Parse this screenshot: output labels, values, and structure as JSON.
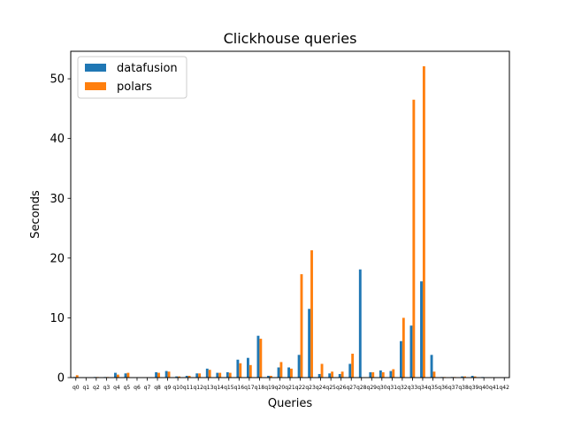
{
  "chart_data": {
    "type": "bar",
    "title": "Clickhouse queries",
    "xlabel": "Queries",
    "ylabel": "Seconds",
    "ylim": [
      0,
      54.6
    ],
    "yticks": [
      0,
      10,
      20,
      30,
      40,
      50
    ],
    "grid": false,
    "legend_position": "top-left",
    "categories": [
      "q0",
      "q1",
      "q2",
      "q3",
      "q4",
      "q5",
      "q6",
      "q7",
      "q8",
      "q9",
      "q10",
      "q11",
      "q12",
      "q13",
      "q14",
      "q15",
      "q16",
      "q17",
      "q18",
      "q19",
      "q20",
      "q21",
      "q22",
      "q23",
      "q24",
      "q25",
      "q26",
      "q27",
      "q28",
      "q29",
      "q30",
      "q31",
      "q32",
      "q33",
      "q34",
      "q35",
      "q36",
      "q37",
      "q38",
      "q39",
      "q40",
      "q41",
      "q42"
    ],
    "series": [
      {
        "name": "datafusion",
        "color": "#1f77b4",
        "values": [
          0.1,
          0.05,
          0.1,
          0.1,
          0.8,
          0.7,
          0.05,
          0.05,
          0.9,
          1.1,
          0.2,
          0.3,
          0.7,
          1.5,
          0.8,
          0.9,
          3.0,
          3.3,
          7.0,
          0.3,
          1.7,
          1.7,
          3.8,
          11.5,
          0.6,
          0.7,
          0.6,
          2.3,
          18.1,
          0.9,
          1.2,
          1.1,
          6.1,
          8.7,
          16.1,
          3.8,
          0.1,
          0.1,
          0.2,
          0.3,
          0.1,
          0.05,
          0.05
        ]
      },
      {
        "name": "polars",
        "color": "#ff7f0e",
        "values": [
          0.4,
          0.05,
          0.1,
          0.1,
          0.5,
          0.8,
          0.05,
          0.05,
          0.8,
          1.0,
          0.2,
          0.3,
          0.7,
          1.3,
          0.8,
          0.8,
          2.4,
          2.1,
          6.5,
          0.3,
          2.6,
          1.5,
          17.3,
          21.3,
          2.3,
          1.0,
          1.0,
          4.0,
          0.05,
          0.9,
          0.9,
          1.4,
          10.0,
          46.5,
          52.1,
          1.0,
          0.1,
          0.1,
          0.2,
          0.2,
          0.05,
          0.05,
          0.05
        ]
      }
    ]
  }
}
